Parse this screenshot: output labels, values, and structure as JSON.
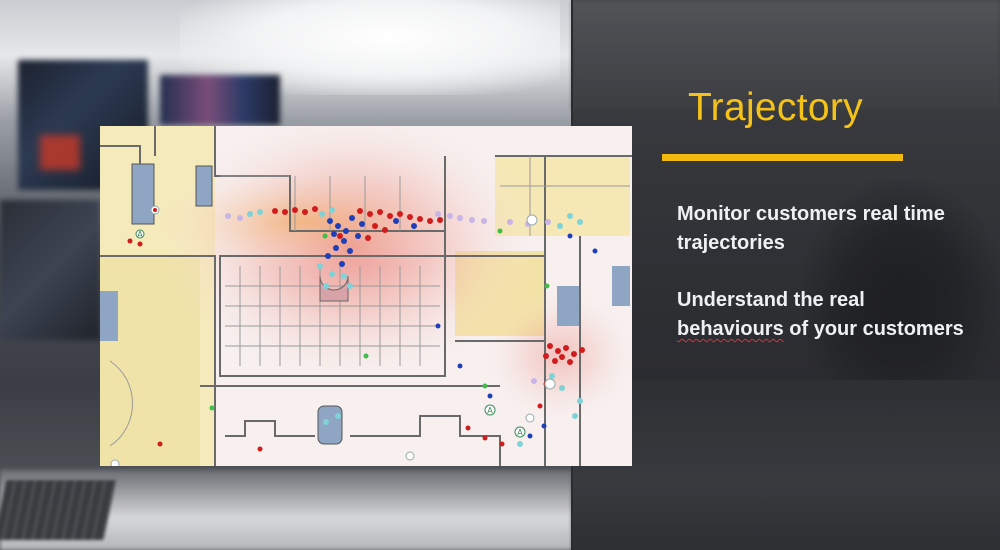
{
  "slide": {
    "title": "Trajectory",
    "accent_color": "#f2b90f",
    "bullets": [
      {
        "text": "Monitor customers real time trajectories"
      },
      {
        "text_before": "Understand the real ",
        "underlined_word": "behaviours",
        "text_after": " of your customers"
      }
    ]
  },
  "map": {
    "image_description_icon": "floor-plan-heatmap",
    "markers": [
      "A",
      "A",
      "A"
    ]
  }
}
